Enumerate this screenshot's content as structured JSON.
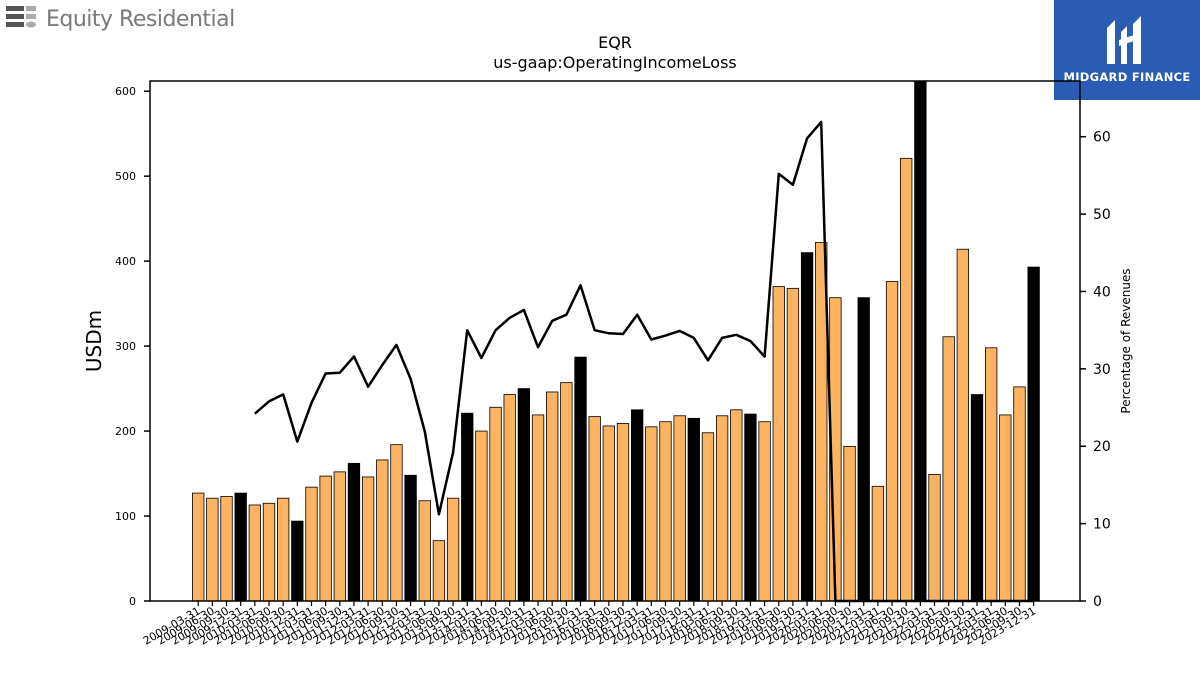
{
  "brand": {
    "name": "Equity Residential",
    "icon": "equity-residential-logo-icon"
  },
  "badge": {
    "name": "MIDGARD FINANCE",
    "icon": "midgard-finance-logo-icon",
    "color": "#2a5cb3"
  },
  "chart_data": {
    "type": "bar",
    "title": "EQR",
    "subtitle": "us-gaap:OperatingIncomeLoss",
    "ylabel": "USDm",
    "y2label": "Percentage of Revenues",
    "ylim": [
      0,
      612
    ],
    "y2lim": [
      0,
      67.2
    ],
    "yticks": [
      0,
      100,
      200,
      300,
      400,
      500,
      600
    ],
    "y2ticks": [
      0,
      10,
      20,
      30,
      40,
      50,
      60
    ],
    "colors": {
      "bar": "#fdb462",
      "bar_q4": "#000000",
      "line": "#000000"
    },
    "categories": [
      "2009-03-31",
      "2009-06-30",
      "2009-09-30",
      "2009-12-31",
      "2010-03-31",
      "2010-06-30",
      "2010-09-30",
      "2010-12-31",
      "2011-03-31",
      "2011-06-30",
      "2011-09-30",
      "2011-12-31",
      "2012-03-31",
      "2012-06-30",
      "2012-09-30",
      "2012-12-31",
      "2013-03-31",
      "2013-06-30",
      "2013-09-30",
      "2013-12-31",
      "2014-03-31",
      "2014-06-30",
      "2014-09-30",
      "2014-12-31",
      "2015-03-31",
      "2015-06-30",
      "2015-09-30",
      "2015-12-31",
      "2016-03-31",
      "2016-06-30",
      "2016-09-30",
      "2016-12-31",
      "2017-03-31",
      "2017-06-30",
      "2017-09-30",
      "2017-12-31",
      "2018-03-31",
      "2018-06-30",
      "2018-09-30",
      "2018-12-31",
      "2019-03-31",
      "2019-06-30",
      "2019-09-30",
      "2019-12-31",
      "2020-03-31",
      "2020-06-30",
      "2020-09-30",
      "2020-12-31",
      "2021-03-31",
      "2021-06-30",
      "2021-09-30",
      "2021-12-31",
      "2022-03-31",
      "2022-06-30",
      "2022-09-30",
      "2022-12-31",
      "2023-03-31",
      "2023-06-30",
      "2023-09-30",
      "2023-12-31"
    ],
    "series": [
      {
        "values": [
          127,
          121,
          123,
          127,
          113,
          115,
          121,
          94,
          134,
          147,
          152,
          162,
          146,
          166,
          184,
          148,
          118,
          71,
          121,
          221,
          200,
          228,
          243,
          250,
          219,
          246,
          257,
          287,
          217,
          206,
          209,
          225,
          205,
          211,
          218,
          215,
          198,
          218,
          225,
          220,
          211,
          370,
          368,
          410,
          422,
          357,
          182,
          357,
          135,
          376,
          521,
          612,
          149,
          311,
          414,
          243,
          298,
          219,
          252,
          393
        ]
      },
      {
        "values": [
          null,
          null,
          null,
          null,
          24.2,
          25.8,
          26.7,
          20.6,
          25.6,
          29.4,
          29.5,
          31.6,
          27.7,
          30.5,
          33.1,
          28.7,
          21.9,
          11.2,
          19.2,
          35.0,
          31.4,
          35.0,
          36.6,
          37.6,
          32.8,
          36.2,
          37.0,
          40.8,
          35.0,
          34.6,
          34.5,
          37.0,
          33.8,
          34.3,
          34.9,
          34.0,
          31.1,
          34.0,
          34.4,
          33.6,
          31.6,
          55.2,
          53.8,
          59.8,
          61.9,
          0,
          0,
          0,
          0,
          0,
          0,
          0,
          0,
          0,
          0,
          0,
          0,
          0,
          0,
          0
        ]
      }
    ]
  }
}
